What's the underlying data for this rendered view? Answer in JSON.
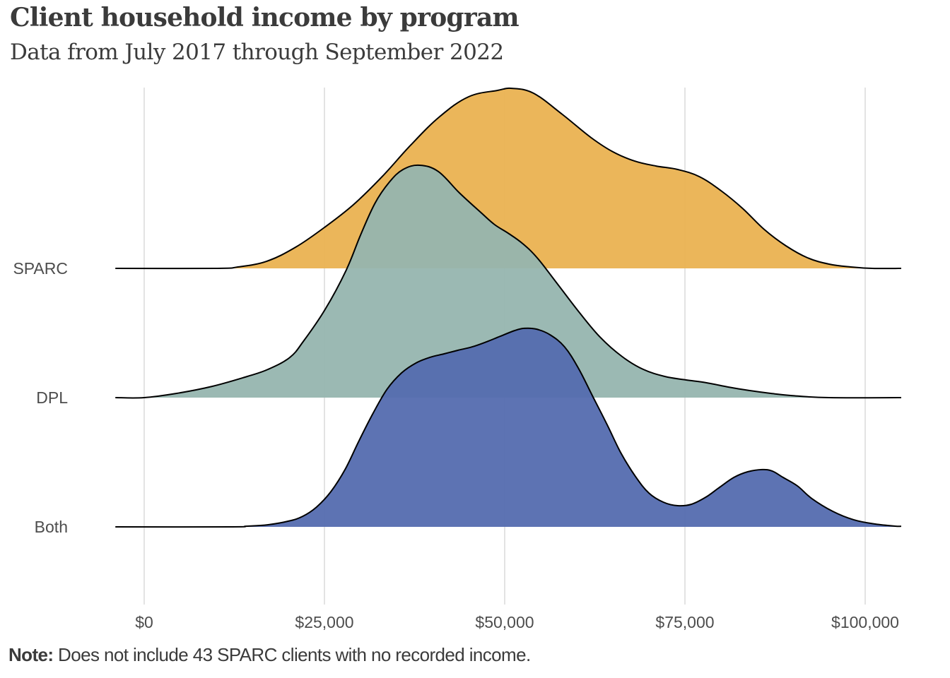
{
  "title": "Client household income by program",
  "subtitle": "Data from July 2017 through September 2022",
  "note": {
    "label": "Note:",
    "text": " Does not include 43 SPARC clients with no recorded income."
  },
  "chart_data": {
    "type": "ridgeline density",
    "title": "Client household income by program",
    "subtitle": "Data from July 2017 through September 2022",
    "xlabel": "",
    "ylabel": "",
    "xlim": [
      -4000,
      105000
    ],
    "x_ticks": [
      0,
      25000,
      50000,
      75000,
      100000
    ],
    "x_tick_labels": [
      "$0",
      "$25,000",
      "$50,000",
      "$75,000",
      "$100,000"
    ],
    "grid": "vertical major gridlines",
    "legend": "none",
    "density_units": "relative density (1 = spacing between ridges)",
    "series": [
      {
        "name": "SPARC",
        "color": "#EAB251",
        "x": [
          -4000,
          10000,
          13000,
          17000,
          21000,
          25000,
          29000,
          33000,
          37000,
          41000,
          45000,
          49000,
          51000,
          54000,
          58000,
          62000,
          65000,
          68000,
          71000,
          74000,
          77000,
          80000,
          83000,
          86000,
          89000,
          92000,
          95000,
          98000,
          101000,
          105000
        ],
        "density": [
          0,
          0,
          0.011,
          0.055,
          0.164,
          0.317,
          0.492,
          0.71,
          0.956,
          1.175,
          1.328,
          1.377,
          1.393,
          1.355,
          1.191,
          1.011,
          0.902,
          0.831,
          0.792,
          0.765,
          0.71,
          0.601,
          0.464,
          0.301,
          0.175,
          0.082,
          0.033,
          0.011,
          0,
          0
        ]
      },
      {
        "name": "DPL",
        "color": "#96B5AF",
        "x": [
          -4000,
          0,
          4500,
          9400,
          14300,
          17200,
          20200,
          22100,
          25100,
          28000,
          30000,
          32000,
          34000,
          35900,
          38200,
          40800,
          43700,
          46700,
          48600,
          50600,
          52500,
          54500,
          57400,
          60400,
          63300,
          66300,
          69200,
          72200,
          75100,
          78000,
          81000,
          83900,
          86900,
          89800,
          95000,
          105000
        ],
        "density": [
          0,
          0,
          0.033,
          0.087,
          0.164,
          0.219,
          0.311,
          0.437,
          0.683,
          0.984,
          1.257,
          1.503,
          1.667,
          1.765,
          1.798,
          1.749,
          1.585,
          1.432,
          1.339,
          1.268,
          1.191,
          1.082,
          0.874,
          0.656,
          0.464,
          0.317,
          0.219,
          0.164,
          0.137,
          0.115,
          0.082,
          0.055,
          0.033,
          0.016,
          0,
          0
        ]
      },
      {
        "name": "Both",
        "color": "#546BAF",
        "x": [
          -4000,
          12200,
          14100,
          17100,
          20000,
          22000,
          23900,
          25900,
          27900,
          29800,
          31800,
          33700,
          35700,
          37700,
          39600,
          41600,
          43500,
          45500,
          47500,
          49400,
          51400,
          52700,
          54400,
          56300,
          58300,
          60200,
          62200,
          64200,
          66100,
          68100,
          70000,
          72000,
          74000,
          75900,
          77900,
          79800,
          81800,
          83700,
          85700,
          87100,
          88600,
          90600,
          92600,
          95500,
          98400,
          101400,
          104300,
          105000
        ],
        "density": [
          0,
          0,
          0.005,
          0.016,
          0.044,
          0.082,
          0.153,
          0.273,
          0.448,
          0.667,
          0.885,
          1.066,
          1.191,
          1.268,
          1.311,
          1.339,
          1.366,
          1.393,
          1.432,
          1.475,
          1.519,
          1.536,
          1.53,
          1.486,
          1.393,
          1.23,
          1.011,
          0.792,
          0.574,
          0.393,
          0.262,
          0.191,
          0.164,
          0.175,
          0.23,
          0.306,
          0.383,
          0.426,
          0.443,
          0.432,
          0.383,
          0.317,
          0.219,
          0.12,
          0.055,
          0.022,
          0.005,
          0.005
        ]
      }
    ]
  }
}
